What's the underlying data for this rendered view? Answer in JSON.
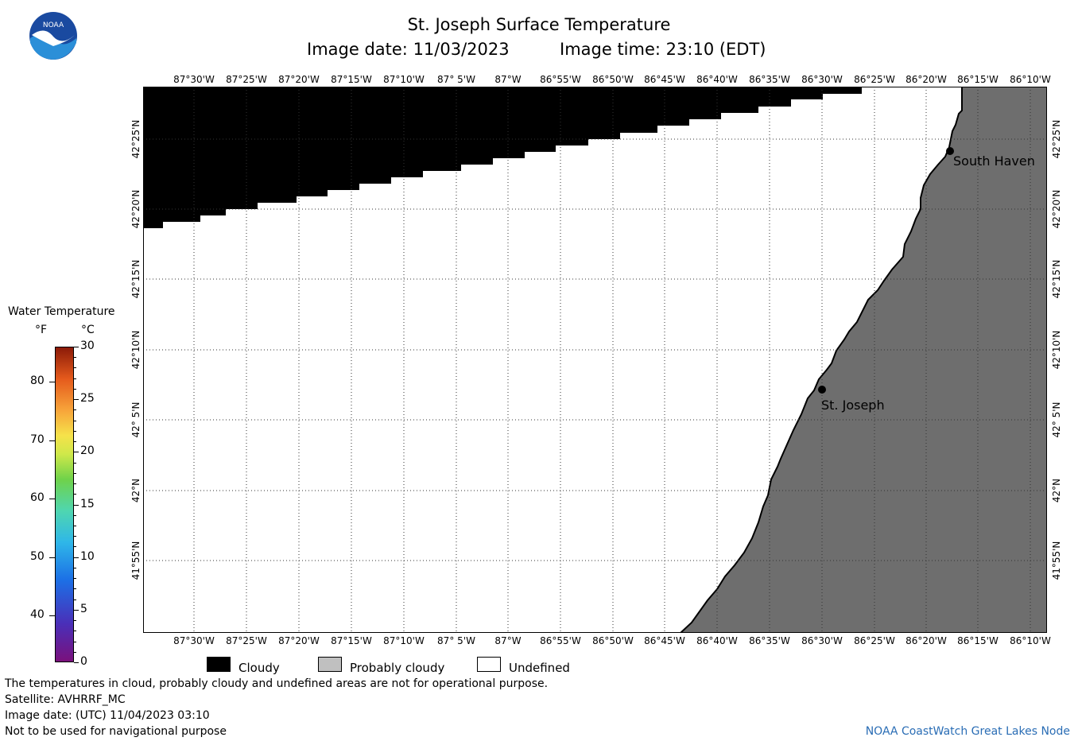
{
  "header": {
    "title": "St. Joseph Surface Temperature",
    "date_label": "Image date:",
    "date_value": "11/03/2023",
    "time_label": "Image time:",
    "time_value": "23:10 (EDT)"
  },
  "logo": {
    "text": "NOAA"
  },
  "map": {
    "lon_labels": [
      "87°30'W",
      "87°25'W",
      "87°20'W",
      "87°15'W",
      "87°10'W",
      "87° 5'W",
      "87°W",
      "86°55'W",
      "86°50'W",
      "86°45'W",
      "86°40'W",
      "86°35'W",
      "86°30'W",
      "86°25'W",
      "86°20'W",
      "86°15'W",
      "86°10'W"
    ],
    "lat_labels": [
      "42°25'N",
      "42°20'N",
      "42°15'N",
      "42°10'N",
      "42° 5'N",
      "42°N",
      "41°55'N"
    ],
    "cities": [
      {
        "name": "South Haven"
      },
      {
        "name": "St. Joseph"
      }
    ],
    "colors": {
      "cloudy": "#000000",
      "land": "#6e6e6e",
      "undefined": "#ffffff"
    }
  },
  "colorbar": {
    "title": "Water Temperature",
    "f_unit": "°F",
    "c_unit": "°C",
    "f_labels": [
      "80",
      "70",
      "60",
      "50",
      "40"
    ],
    "c_labels": [
      "30",
      "25",
      "20",
      "15",
      "10",
      "5",
      "0"
    ]
  },
  "legend": {
    "items": [
      {
        "label": "Cloudy",
        "color": "#000000"
      },
      {
        "label": "Probably cloudy",
        "color": "#c0c0c0"
      },
      {
        "label": "Undefined",
        "color": "#ffffff"
      }
    ]
  },
  "footer": {
    "line1": "The temperatures in cloud, probably cloudy and undefined areas are not for operational purpose.",
    "line2": "Satellite: AVHRRF_MC",
    "line3": "Image date: (UTC) 11/04/2023  03:10",
    "line4": "Not to be used for navigational purpose",
    "credit": "NOAA CoastWatch Great Lakes Node"
  }
}
